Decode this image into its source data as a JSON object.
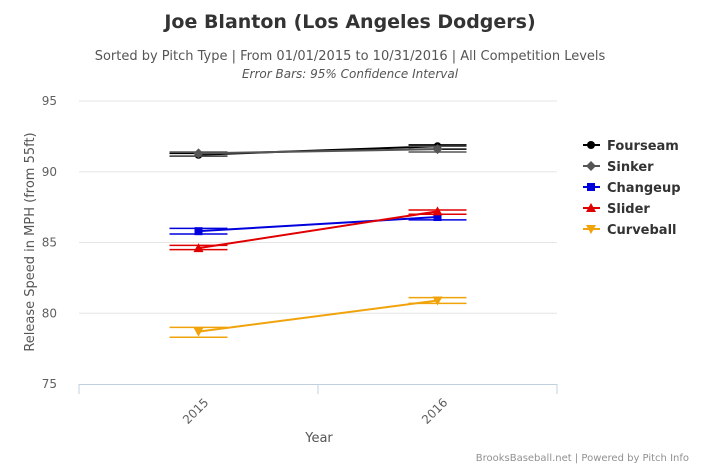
{
  "chart_data": {
    "type": "line",
    "title": "Joe Blanton (Los Angeles Dodgers)",
    "subtitle": "Sorted by Pitch Type | From 01/01/2015 to 10/31/2016 | All Competition Levels",
    "subtitle2": "Error Bars: 95% Confidence Interval",
    "xlabel": "Year",
    "ylabel": "Release Speed in MPH (from 55ft)",
    "categories": [
      "2015",
      "2016"
    ],
    "ylim": [
      75,
      95
    ],
    "yticks": [
      "75",
      "80",
      "85",
      "90",
      "95"
    ],
    "grid": true,
    "legend_position": "right",
    "series": [
      {
        "name": "Fourseam",
        "color": "#000000",
        "marker": "circle",
        "values": [
          91.2,
          91.8
        ],
        "err_low": [
          91.1,
          91.6
        ],
        "err_high": [
          91.3,
          91.9
        ]
      },
      {
        "name": "Sinker",
        "color": "#555555",
        "marker": "diamond",
        "values": [
          91.3,
          91.6
        ],
        "err_low": [
          91.1,
          91.4
        ],
        "err_high": [
          91.4,
          91.8
        ]
      },
      {
        "name": "Changeup",
        "color": "#0000dd",
        "marker": "square",
        "values": [
          85.8,
          86.8
        ],
        "err_low": [
          85.6,
          86.6
        ],
        "err_high": [
          86.0,
          87.0
        ]
      },
      {
        "name": "Slider",
        "color": "#e00000",
        "marker": "triangle",
        "values": [
          84.6,
          87.2
        ],
        "err_low": [
          84.5,
          87.0
        ],
        "err_high": [
          84.8,
          87.3
        ]
      },
      {
        "name": "Curveball",
        "color": "#f0a30a",
        "marker": "triangle-down",
        "values": [
          78.7,
          80.9
        ],
        "err_low": [
          78.3,
          80.7
        ],
        "err_high": [
          79.0,
          81.1
        ]
      }
    ]
  },
  "credits": "BrooksBaseball.net | Powered by Pitch Info"
}
